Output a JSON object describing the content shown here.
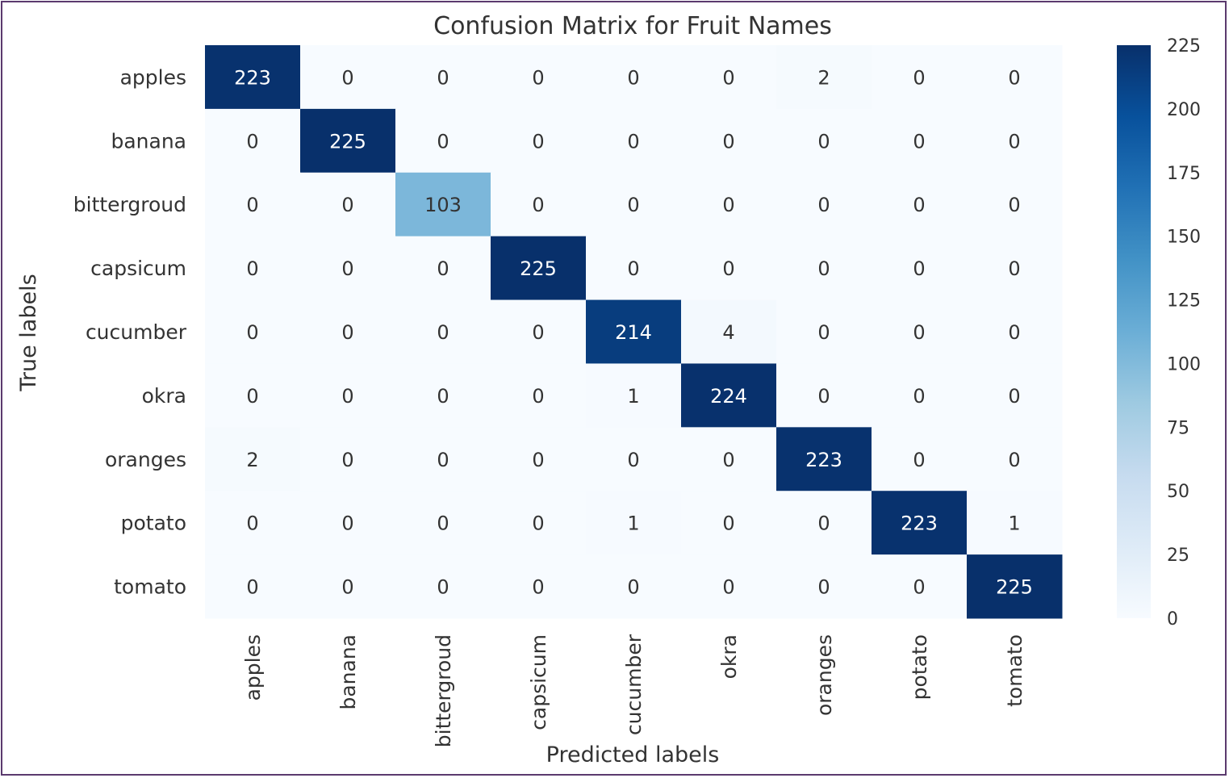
{
  "chart_data": {
    "type": "heatmap",
    "title": "Confusion Matrix for Fruit Names",
    "xlabel": "Predicted labels",
    "ylabel": "True labels",
    "x_categories": [
      "apples",
      "banana",
      "bittergroud",
      "capsicum",
      "cucumber",
      "okra",
      "oranges",
      "potato",
      "tomato"
    ],
    "y_categories": [
      "apples",
      "banana",
      "bittergroud",
      "capsicum",
      "cucumber",
      "okra",
      "oranges",
      "potato",
      "tomato"
    ],
    "values": [
      [
        223,
        0,
        0,
        0,
        0,
        0,
        2,
        0,
        0
      ],
      [
        0,
        225,
        0,
        0,
        0,
        0,
        0,
        0,
        0
      ],
      [
        0,
        0,
        103,
        0,
        0,
        0,
        0,
        0,
        0
      ],
      [
        0,
        0,
        0,
        225,
        0,
        0,
        0,
        0,
        0
      ],
      [
        0,
        0,
        0,
        0,
        214,
        4,
        0,
        0,
        0
      ],
      [
        0,
        0,
        0,
        0,
        1,
        224,
        0,
        0,
        0
      ],
      [
        2,
        0,
        0,
        0,
        0,
        0,
        223,
        0,
        0
      ],
      [
        0,
        0,
        0,
        0,
        1,
        0,
        0,
        223,
        1
      ],
      [
        0,
        0,
        0,
        0,
        0,
        0,
        0,
        0,
        225
      ]
    ],
    "colormap": "Blues",
    "value_range": [
      0,
      225
    ],
    "colorbar_ticks": [
      0,
      25,
      50,
      75,
      100,
      125,
      150,
      175,
      200,
      225
    ],
    "grid": false
  }
}
